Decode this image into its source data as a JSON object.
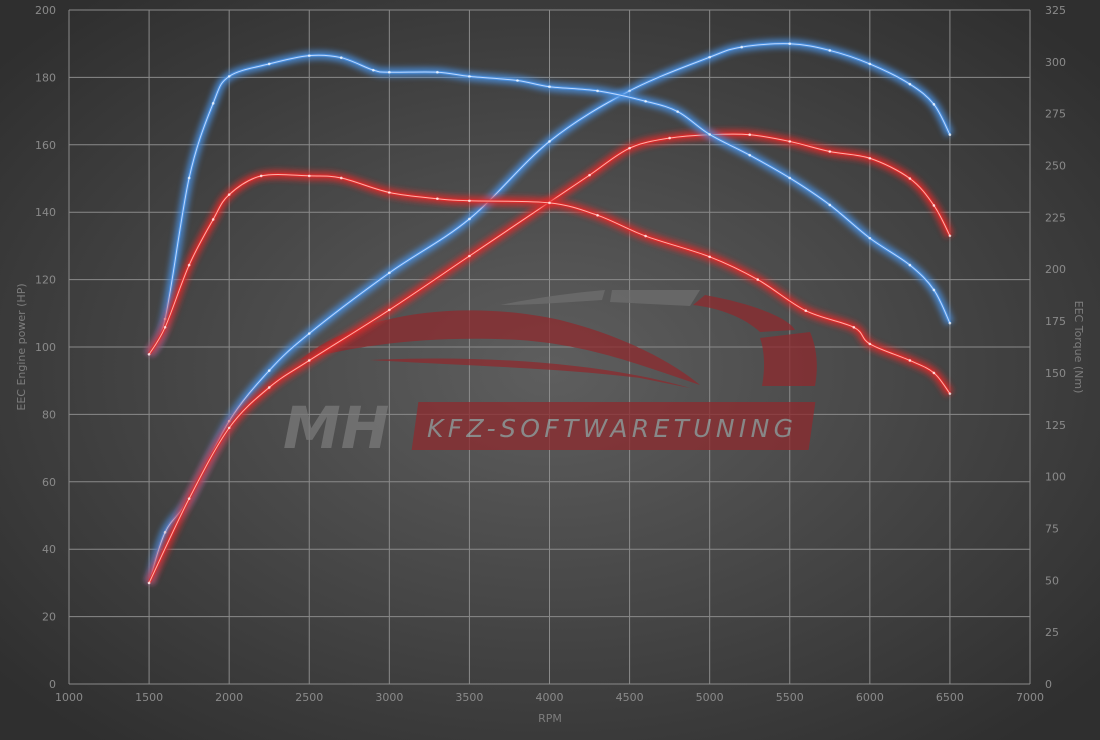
{
  "chart_data": {
    "type": "line",
    "title": "",
    "xlabel": "RPM",
    "ylabel_left": "EEC Engine power (HP)",
    "ylabel_right": "EEC Torque (Nm)",
    "xlim": [
      1000,
      7000
    ],
    "ylim_left": [
      0,
      200
    ],
    "ylim_right": [
      0,
      325
    ],
    "x_ticks": [
      1000,
      1500,
      2000,
      2500,
      3000,
      3500,
      4000,
      4500,
      5000,
      5500,
      6000,
      6500,
      7000
    ],
    "y_ticks_left": [
      0,
      20,
      40,
      60,
      80,
      100,
      120,
      140,
      160,
      180,
      200
    ],
    "y_ticks_right": [
      0,
      25,
      50,
      75,
      100,
      125,
      150,
      175,
      200,
      225,
      250,
      275,
      300,
      325
    ],
    "grid": true,
    "legend": "none",
    "series": [
      {
        "axis": "left",
        "color": "#4a90e0",
        "x": [
          1500,
          1600,
          1750,
          2000,
          2250,
          2500,
          3000,
          3500,
          4000,
          4500,
          5000,
          5200,
          5500,
          5750,
          6000,
          6250,
          6400,
          6500
        ],
        "values": [
          30,
          45,
          55,
          78,
          93,
          104,
          122,
          138,
          161,
          176,
          186,
          189,
          190,
          188,
          184,
          178,
          172,
          163
        ]
      },
      {
        "axis": "left",
        "color": "#e02a2a",
        "x": [
          1500,
          1750,
          2000,
          2250,
          2500,
          3000,
          3500,
          4000,
          4250,
          4500,
          4750,
          5000,
          5250,
          5500,
          5750,
          6000,
          6250,
          6400,
          6500
        ],
        "values": [
          30,
          55,
          76,
          88,
          96,
          111,
          127,
          143,
          151,
          159,
          162,
          163,
          163,
          161,
          158,
          156,
          150,
          142,
          133
        ]
      },
      {
        "axis": "right",
        "color": "#4a90e0",
        "x": [
          1500,
          1600,
          1750,
          1900,
          2000,
          2250,
          2500,
          2700,
          2900,
          3000,
          3300,
          3500,
          3800,
          4000,
          4300,
          4600,
          4800,
          5000,
          5250,
          5500,
          5750,
          6000,
          6250,
          6400,
          6500
        ],
        "values": [
          159,
          176,
          244,
          280,
          293,
          299,
          303,
          302,
          296,
          295,
          295,
          293,
          291,
          288,
          286,
          281,
          276,
          265,
          255,
          244,
          231,
          215,
          202,
          190,
          174
        ]
      },
      {
        "axis": "right",
        "color": "#e02a2a",
        "x": [
          1500,
          1600,
          1750,
          1900,
          2000,
          2200,
          2500,
          2700,
          3000,
          3300,
          3500,
          4000,
          4300,
          4600,
          5000,
          5300,
          5600,
          5900,
          6000,
          6250,
          6400,
          6500
        ],
        "values": [
          159,
          172,
          202,
          224,
          236,
          245,
          245,
          244,
          237,
          234,
          233,
          232,
          226,
          216,
          206,
          195,
          180,
          172,
          164,
          156,
          150,
          140
        ]
      }
    ]
  },
  "watermark": {
    "brand": "MH",
    "tagline": "KFZ-SOFTWARETUNING",
    "accent": "#b52a2e"
  }
}
